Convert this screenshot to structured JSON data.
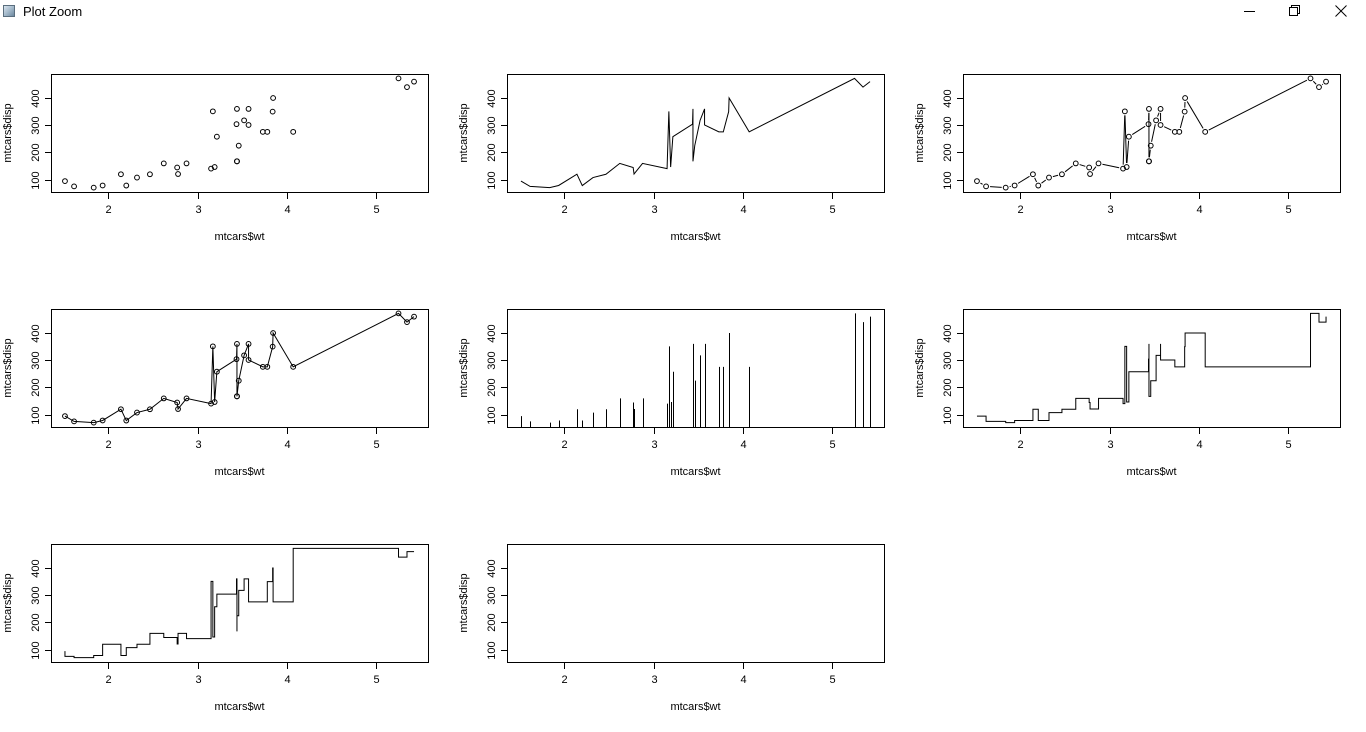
{
  "window": {
    "title": "Plot Zoom",
    "app_icon": "r-plot-icon",
    "controls": [
      "minimize-icon",
      "restore-icon",
      "close-icon"
    ]
  },
  "chart_data": [
    {
      "panel": 1,
      "type": "scatter",
      "plot_type": "p",
      "xlabel": "mtcars$wt",
      "ylabel": "mtcars$disp",
      "xticks": [
        2,
        3,
        4,
        5
      ],
      "yticks": [
        100,
        200,
        300,
        400
      ],
      "xlim": [
        1.513,
        5.424
      ],
      "ylim": [
        71.1,
        472
      ],
      "has_data": true
    },
    {
      "panel": 2,
      "type": "line",
      "plot_type": "l",
      "xlabel": "mtcars$wt",
      "ylabel": "mtcars$disp",
      "xticks": [
        2,
        3,
        4,
        5
      ],
      "yticks": [
        100,
        200,
        300,
        400
      ],
      "xlim": [
        1.513,
        5.424
      ],
      "ylim": [
        71.1,
        472
      ],
      "has_data": true
    },
    {
      "panel": 3,
      "type": "line",
      "plot_type": "b",
      "xlabel": "mtcars$wt",
      "ylabel": "mtcars$disp",
      "xticks": [
        2,
        3,
        4,
        5
      ],
      "yticks": [
        100,
        200,
        300,
        400
      ],
      "xlim": [
        1.513,
        5.424
      ],
      "ylim": [
        71.1,
        472
      ],
      "has_data": true
    },
    {
      "panel": 4,
      "type": "line",
      "plot_type": "o",
      "xlabel": "mtcars$wt",
      "ylabel": "mtcars$disp",
      "xticks": [
        2,
        3,
        4,
        5
      ],
      "yticks": [
        100,
        200,
        300,
        400
      ],
      "xlim": [
        1.513,
        5.424
      ],
      "ylim": [
        71.1,
        472
      ],
      "has_data": true
    },
    {
      "panel": 5,
      "type": "bar",
      "plot_type": "h",
      "xlabel": "mtcars$wt",
      "ylabel": "mtcars$disp",
      "xticks": [
        2,
        3,
        4,
        5
      ],
      "yticks": [
        100,
        200,
        300,
        400
      ],
      "xlim": [
        1.513,
        5.424
      ],
      "ylim": [
        71.1,
        472
      ],
      "has_data": true
    },
    {
      "panel": 6,
      "type": "line",
      "plot_type": "s",
      "xlabel": "mtcars$wt",
      "ylabel": "mtcars$disp",
      "xticks": [
        2,
        3,
        4,
        5
      ],
      "yticks": [
        100,
        200,
        300,
        400
      ],
      "xlim": [
        1.513,
        5.424
      ],
      "ylim": [
        71.1,
        472
      ],
      "has_data": true
    },
    {
      "panel": 7,
      "type": "line",
      "plot_type": "S",
      "xlabel": "mtcars$wt",
      "ylabel": "mtcars$disp",
      "xticks": [
        2,
        3,
        4,
        5
      ],
      "yticks": [
        100,
        200,
        300,
        400
      ],
      "xlim": [
        1.513,
        5.424
      ],
      "ylim": [
        71.1,
        472
      ],
      "has_data": true
    },
    {
      "panel": 8,
      "type": "scatter",
      "plot_type": "n",
      "xlabel": "mtcars$wt",
      "ylabel": "mtcars$disp",
      "xticks": [
        2,
        3,
        4,
        5
      ],
      "yticks": [
        100,
        200,
        300,
        400
      ],
      "xlim": [
        1.513,
        5.424
      ],
      "ylim": [
        71.1,
        472
      ],
      "has_data": false
    }
  ],
  "points": {
    "x": [
      2.62,
      2.875,
      2.32,
      3.215,
      3.44,
      3.46,
      3.57,
      3.19,
      3.15,
      3.44,
      3.44,
      4.07,
      3.73,
      3.78,
      5.25,
      5.424,
      5.345,
      2.2,
      1.615,
      1.835,
      2.465,
      3.52,
      3.435,
      3.84,
      3.845,
      1.935,
      2.14,
      1.513,
      3.17,
      2.77,
      3.57,
      2.78
    ],
    "y": [
      160,
      160,
      108,
      258,
      360,
      225,
      360,
      146.7,
      140.8,
      167.6,
      167.6,
      275.8,
      275.8,
      275.8,
      472,
      460,
      440,
      78.7,
      75.7,
      71.1,
      120.1,
      318,
      304,
      350,
      400,
      79,
      120.3,
      95.1,
      351,
      145,
      301,
      121
    ]
  }
}
